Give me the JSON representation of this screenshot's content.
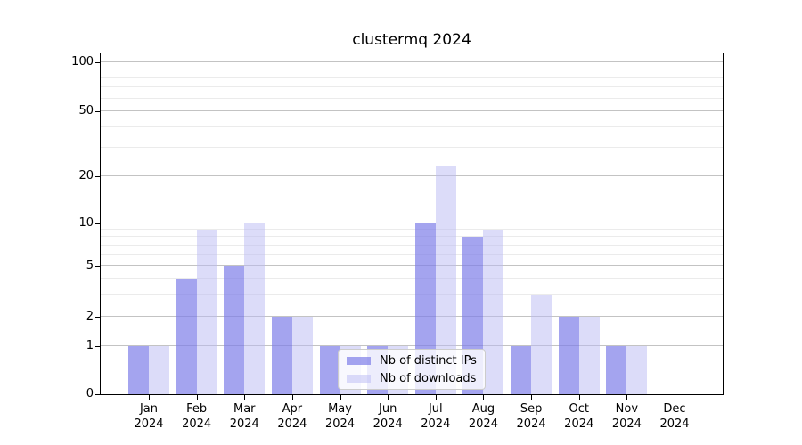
{
  "chart_data": {
    "type": "bar",
    "title": "clustermq 2024",
    "categories": [
      "Jan",
      "Feb",
      "Mar",
      "Apr",
      "May",
      "Jun",
      "Jul",
      "Aug",
      "Sep",
      "Oct",
      "Nov",
      "Dec"
    ],
    "category_year": "2024",
    "series": [
      {
        "name": "Nb of distinct IPs",
        "color": "rgba(125, 125, 232, 0.70)",
        "values": [
          1,
          4,
          5,
          2,
          1,
          1,
          10,
          8,
          1,
          2,
          1,
          0
        ]
      },
      {
        "name": "Nb of downloads",
        "color": "rgba(186, 186, 243, 0.50)",
        "values": [
          1,
          9,
          10,
          2,
          1,
          1,
          23,
          9,
          3,
          2,
          1,
          0
        ]
      }
    ],
    "y_axis": {
      "scale": "pseudo-log",
      "ticks": [
        0,
        1,
        2,
        5,
        10,
        20,
        50,
        100
      ],
      "minor_ticks": [
        3,
        4,
        6,
        7,
        8,
        9,
        30,
        40,
        60,
        70,
        80,
        90
      ],
      "anchors": [
        [
          0,
          0.0
        ],
        [
          1,
          0.141
        ],
        [
          2,
          0.2272
        ],
        [
          5,
          0.376
        ],
        [
          10,
          0.5013
        ],
        [
          20,
          0.6397
        ],
        [
          50,
          0.8303
        ],
        [
          100,
          0.9739
        ]
      ]
    },
    "legend": {
      "position": "bottom-center",
      "entries": [
        "Nb of distinct IPs",
        "Nb of downloads"
      ]
    },
    "colors": {
      "grid_major": "#c3c3c3",
      "grid_minor": "#ebebeb",
      "spine": "#000000",
      "text": "#000000"
    },
    "grid": "on",
    "xlabel": "",
    "ylabel": ""
  }
}
